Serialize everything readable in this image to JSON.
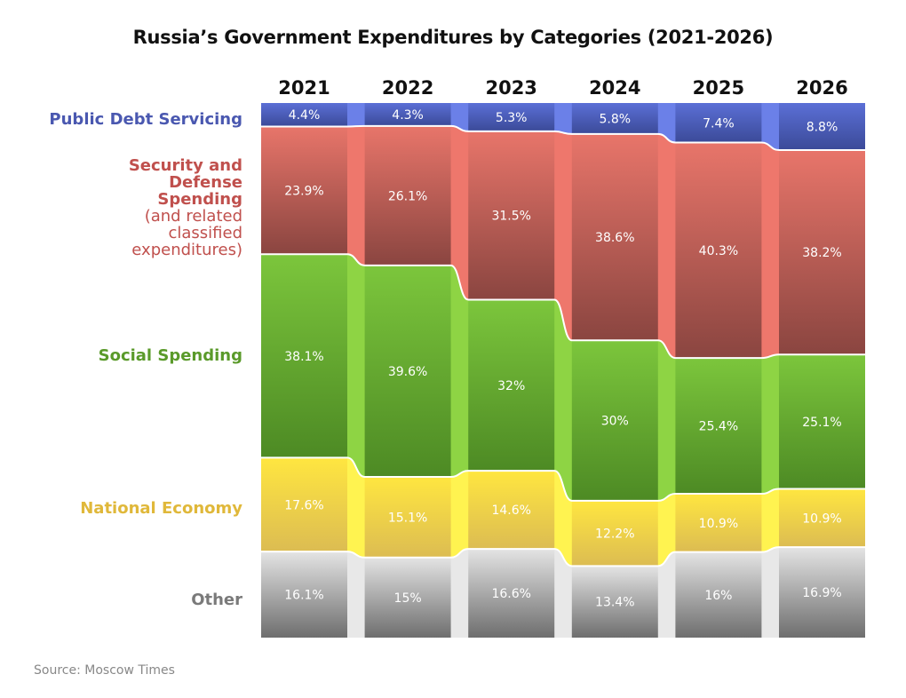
{
  "chart_data": {
    "type": "bar",
    "stacked": true,
    "normalized": true,
    "title": "Russia’s Government Expenditures by Categories (2021-2026)",
    "categories": [
      "2021",
      "2022",
      "2023",
      "2024",
      "2025",
      "2026"
    ],
    "series": [
      {
        "name": "Public Debt Servicing",
        "values": [
          4.4,
          4.3,
          5.3,
          5.8,
          7.4,
          8.8
        ],
        "labels": [
          "4.4%",
          "4.3%",
          "5.3%",
          "5.8%",
          "7.4%",
          "8.8%"
        ],
        "color": "#5b6fd6",
        "light": "#6b80e8",
        "dark": "#3b4a98",
        "label_color": "#4a58b0"
      },
      {
        "name": "Security and Defense Spending",
        "subname": "(and related classified expenditures)",
        "values": [
          23.9,
          26.1,
          31.5,
          38.6,
          40.3,
          38.2
        ],
        "labels": [
          "23.9%",
          "26.1%",
          "31.5%",
          "38.6%",
          "40.3%",
          "38.2%"
        ],
        "color": "#e8756a",
        "light": "#ee776c",
        "dark": "#8a4540",
        "label_color": "#c0504d"
      },
      {
        "name": "Social Spending",
        "values": [
          38.1,
          39.6,
          32,
          30,
          25.4,
          25.1
        ],
        "labels": [
          "38.1%",
          "39.6%",
          "32%",
          "30%",
          "25.4%",
          "25.1%"
        ],
        "color": "#7cc63c",
        "light": "#8ed444",
        "dark": "#4d8a24",
        "label_color": "#5a9a2a"
      },
      {
        "name": "National Economy",
        "values": [
          17.6,
          15.1,
          14.6,
          12.2,
          10.9,
          10.9
        ],
        "labels": [
          "17.6%",
          "15.1%",
          "14.6%",
          "12.2%",
          "10.9%",
          "10.9%"
        ],
        "color": "#ffe640",
        "light": "#fff350",
        "dark": "#dcbc52",
        "label_color": "#e0b83a"
      },
      {
        "name": "Other",
        "values": [
          16.1,
          15,
          16.6,
          13.4,
          16,
          16.9
        ],
        "labels": [
          "16.1%",
          "15%",
          "16.6%",
          "13.4%",
          "16%",
          "16.9%"
        ],
        "color": "#e4e4e4",
        "light": "#e8e8e8",
        "dark": "#6e6e6e",
        "label_color": "#7a7a7a"
      }
    ],
    "legend": "left",
    "grid": false
  },
  "source": "Source: Moscow Times"
}
